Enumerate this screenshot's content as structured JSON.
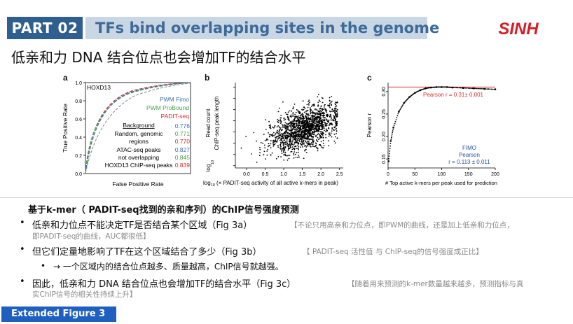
{
  "header": {
    "part_label": "PART 02",
    "title": "TFs bind overlapping sites in the genome",
    "logo_text": "SINH"
  },
  "subtitle": "低亲和力 DNA 结合位点也会增加TF的结合水平",
  "panels": {
    "a": {
      "label": "a",
      "inner_title": "HOXD13",
      "ylabel": "True Positive Rate",
      "xlabel": "False Positive Rate",
      "yticks": [
        "0.0",
        "0.2",
        "0.4",
        "0.6",
        "0.8",
        "1.0"
      ],
      "legend": [
        {
          "name": "PWM Fimo",
          "color": "#3a6fb0"
        },
        {
          "name": "PWM ProBound",
          "color": "#4aa04a"
        },
        {
          "name": "PADIT-seq",
          "color": "#d43030"
        }
      ],
      "table_header": "Background",
      "rows": [
        {
          "label": "Random, genomic",
          "v1": "0.776",
          "v2": "0.771",
          "v3": "0.770",
          "label2": "regions"
        },
        {
          "label": "ATAC-seq peaks",
          "v1": "0.827",
          "v2": "0.845",
          "v3": "0.839",
          "label2": "not overlapping",
          "label3": "HOXD13 ChIP-seq peaks"
        }
      ]
    },
    "b": {
      "label": "b",
      "ylabel_1": "Read count",
      "ylabel_2": "ChIP-seq peak length",
      "ylabel_log": "log",
      "ylabel_sub": "10",
      "xlabel_pre": "log",
      "xlabel_sub": "10",
      "xlabel_post": " (× PADIT-seq activity of all active ",
      "xlabel_k": "k",
      "xlabel_end": "-mers in peak)",
      "xticks": [
        "0.0",
        "0.5",
        "1.0",
        "1.5",
        "2.0",
        "2.5"
      ],
      "yticks": [
        "−1.0",
        "−0.5",
        "0.0",
        "0.5",
        "1.0",
        "1.5",
        "2.0",
        "2.5"
      ]
    },
    "c": {
      "label": "c",
      "ylabel": "Pearson r",
      "xlabel": "# Top active k-mers per peak used for prediction",
      "yticks": [
        "0.15",
        "0.20",
        "0.25",
        "0.30"
      ],
      "xticks": [
        "0",
        "50",
        "100",
        "150",
        "200"
      ],
      "pearson_red": "Pearson r = 0.31± 0.001",
      "fimo_1": "FIMO",
      "fimo_2": "Pearson",
      "fimo_3": "r = 0.113 ± 0.011"
    }
  },
  "chart_data": [
    {
      "type": "line",
      "panel": "a",
      "title": "HOXD13",
      "xlabel": "False Positive Rate",
      "ylabel": "True Positive Rate",
      "ylim": [
        0,
        1
      ],
      "series": [
        {
          "name": "PWM Fimo",
          "auc": [
            0.776,
            0.827
          ]
        },
        {
          "name": "PWM ProBound",
          "auc": [
            0.771,
            0.845
          ]
        },
        {
          "name": "PADIT-seq",
          "auc": [
            0.77,
            0.839
          ]
        }
      ]
    },
    {
      "type": "scatter",
      "panel": "b",
      "xlim": [
        -0.3,
        2.6
      ],
      "ylim": [
        -1.1,
        2.7
      ]
    },
    {
      "type": "line",
      "panel": "c",
      "xlabel": "# Top active k-mers per peak used for prediction",
      "ylabel": "Pearson r",
      "xlim": [
        0,
        200
      ],
      "ylim": [
        0.13,
        0.32
      ],
      "x": [
        1,
        5,
        10,
        20,
        30,
        40,
        50,
        60,
        70,
        80,
        90,
        100,
        110,
        120,
        140,
        160,
        180,
        200
      ],
      "y": [
        0.145,
        0.19,
        0.22,
        0.255,
        0.275,
        0.288,
        0.297,
        0.303,
        0.307,
        0.309,
        0.31,
        0.31,
        0.31,
        0.309,
        0.308,
        0.307,
        0.306,
        0.305
      ],
      "reference_line": 0.31
    }
  ],
  "section": {
    "heading": "基于k-mer（ PADIT-seq找到的亲和序列）的ChIP信号强度预测",
    "bullets": [
      {
        "text": "低亲和力位点不能决定TF是否结合某个区域（Fig 3a）",
        "note_line1": "【不论只用高亲和力位点，即PWM的曲线，还是加上低亲和力位点，",
        "note_line2": "即PADIT-seq的曲线，AUC都很低】"
      },
      {
        "text": "但它们定量地影响了TF在这个区域结合了多少（Fig 3b）",
        "note_line1": "【 PADIT-seq 活性值 与 ChIP-seq的信号强度成正比】"
      },
      {
        "sub": true,
        "text": "→ 一个区域内的结合位点越多、质量越高，ChIP信号就越强。"
      },
      {
        "text": "因此，低亲和力 DNA 结合位点也会增加TF的结合水平（Fig 3c）",
        "note_line1": "【随着用来预测的k-mer数量越来越多，预测指标与真",
        "note_line2": "实ChIP信号的相关性持续上升】"
      }
    ],
    "bullet_symbol": "•",
    "sub_bullet_symbol": "•"
  },
  "footer": {
    "label": "Extended Figure 3"
  }
}
